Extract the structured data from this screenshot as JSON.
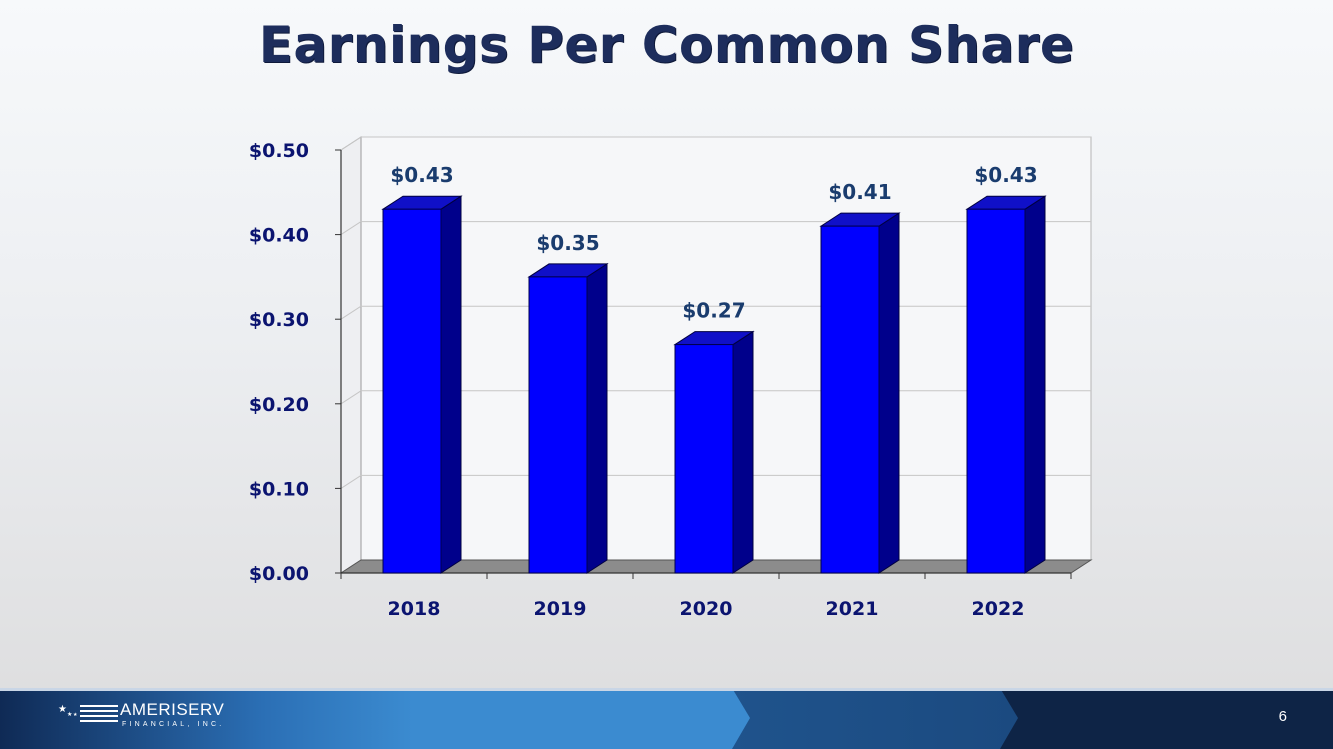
{
  "slide": {
    "title": "Earnings Per Common Share",
    "page_number": "6"
  },
  "logo": {
    "name": "AMERISERV",
    "subtitle": "FINANCIAL, INC."
  },
  "colors": {
    "title": "#1d2d5c",
    "bar_front": "#0000ff",
    "bar_side": "#00008b",
    "bar_top": "#1010c8",
    "axis_text": "#0b1470",
    "data_label": "#1a3c6e",
    "floor": "#8c8c8c",
    "footer_light": "#3b8bd0",
    "footer_dark": "#0e2446"
  },
  "chart_data": {
    "type": "bar",
    "categories": [
      "2018",
      "2019",
      "2020",
      "2021",
      "2022"
    ],
    "values": [
      0.43,
      0.35,
      0.27,
      0.41,
      0.43
    ],
    "data_labels": [
      "$0.43",
      "$0.35",
      "$0.27",
      "$0.41",
      "$0.43"
    ],
    "ylim": [
      0,
      0.5
    ],
    "yticks": [
      0,
      0.1,
      0.2,
      0.3,
      0.4,
      0.5
    ],
    "ytick_labels": [
      "$0.00",
      "$0.10",
      "$0.20",
      "$0.30",
      "$0.40",
      "$0.50"
    ],
    "grid": true,
    "legend": "none",
    "style": "3d"
  }
}
